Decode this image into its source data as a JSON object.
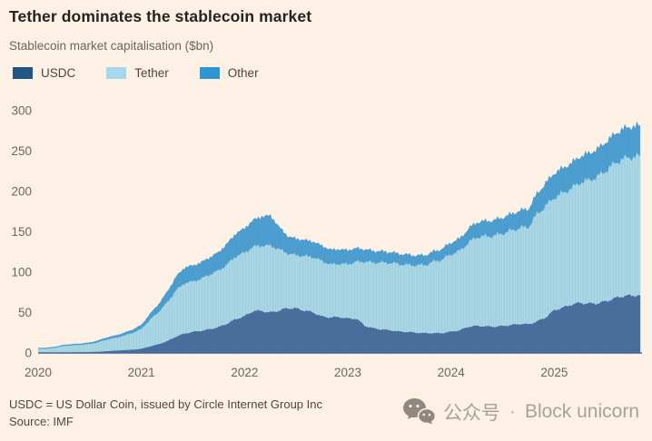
{
  "header": {
    "title": "Tether dominates the stablecoin market",
    "subtitle": "Stablecoin market capitalisation ($bn)"
  },
  "legend": [
    {
      "label": "USDC",
      "color": "#1F5685"
    },
    {
      "label": "Tether",
      "color": "#A5D8EA"
    },
    {
      "label": "Other",
      "color": "#2E96D1"
    }
  ],
  "chart_data": {
    "type": "area",
    "stacked": true,
    "title": "Tether dominates the stablecoin market",
    "subtitle": "Stablecoin market capitalisation ($bn)",
    "xlabel": "",
    "ylabel": "Stablecoin market capitalisation ($bn)",
    "grid": false,
    "legend_position": "top",
    "xlim": [
      2020.0,
      2025.85
    ],
    "ylim": [
      0,
      300
    ],
    "xticks": [
      2020,
      2021,
      2022,
      2023,
      2024,
      2025
    ],
    "yticks": [
      0,
      50,
      100,
      150,
      200,
      250,
      300
    ],
    "x": [
      2020.0,
      2020.083,
      2020.167,
      2020.25,
      2020.333,
      2020.417,
      2020.5,
      2020.583,
      2020.667,
      2020.75,
      2020.833,
      2020.917,
      2021.0,
      2021.083,
      2021.167,
      2021.25,
      2021.333,
      2021.417,
      2021.5,
      2021.583,
      2021.667,
      2021.75,
      2021.833,
      2021.917,
      2022.0,
      2022.083,
      2022.167,
      2022.25,
      2022.333,
      2022.417,
      2022.5,
      2022.583,
      2022.667,
      2022.75,
      2022.833,
      2022.917,
      2023.0,
      2023.083,
      2023.167,
      2023.25,
      2023.333,
      2023.417,
      2023.5,
      2023.583,
      2023.667,
      2023.75,
      2023.833,
      2023.917,
      2024.0,
      2024.083,
      2024.167,
      2024.25,
      2024.333,
      2024.417,
      2024.5,
      2024.583,
      2024.667,
      2024.75,
      2024.833,
      2024.917,
      2025.0,
      2025.083,
      2025.167,
      2025.25,
      2025.333,
      2025.417,
      2025.5,
      2025.583,
      2025.667,
      2025.75,
      2025.833
    ],
    "series": [
      {
        "name": "USDC",
        "color": "#4A6F9D",
        "legend_color": "#1F5685",
        "values": [
          0.5,
          0.5,
          0.6,
          0.7,
          0.7,
          0.9,
          1.1,
          1.4,
          2.2,
          2.8,
          3.5,
          4.0,
          5.2,
          8.0,
          10.8,
          14.5,
          20.0,
          24.0,
          26.0,
          27.5,
          29.5,
          32.0,
          36.5,
          42.0,
          45.5,
          52.0,
          52.0,
          50.0,
          52.5,
          55.5,
          55.0,
          52.5,
          50.0,
          45.0,
          44.0,
          44.5,
          42.5,
          42.5,
          33.5,
          30.5,
          29.0,
          28.0,
          26.5,
          26.0,
          25.0,
          24.5,
          24.5,
          24.5,
          26.5,
          28.0,
          32.5,
          33.5,
          33.0,
          32.5,
          33.5,
          34.5,
          36.0,
          35.5,
          39.0,
          44.0,
          53.0,
          56.0,
          60.0,
          62.0,
          61.0,
          61.5,
          64.0,
          67.5,
          70.5,
          71.0,
          71.5
        ]
      },
      {
        "name": "Tether",
        "color": "#A9D6E5",
        "legend_color": "#A5D8EA",
        "values": [
          4.7,
          4.7,
          6.0,
          8.0,
          8.8,
          9.2,
          10.0,
          12.0,
          14.5,
          15.9,
          18.0,
          21.0,
          24.5,
          33.0,
          40.0,
          48.0,
          57.0,
          62.5,
          62.5,
          64.5,
          68.0,
          70.0,
          73.5,
          78.0,
          78.5,
          79.5,
          81.0,
          83.0,
          76.0,
          68.0,
          66.0,
          67.5,
          68.5,
          69.0,
          65.5,
          66.0,
          67.5,
          70.5,
          79.5,
          81.5,
          83.0,
          83.5,
          83.5,
          83.0,
          83.5,
          84.5,
          88.5,
          91.5,
          96.0,
          98.0,
          104.0,
          110.0,
          111.5,
          112.5,
          114.5,
          117.0,
          119.0,
          120.5,
          133.0,
          138.0,
          139.5,
          142.0,
          144.0,
          149.0,
          153.0,
          156.5,
          162.0,
          167.0,
          170.0,
          171.5,
          172.5
        ]
      },
      {
        "name": "Other",
        "color": "#4C9FD0",
        "legend_color": "#2E96D1",
        "values": [
          1.2,
          1.2,
          1.3,
          1.5,
          1.6,
          1.7,
          1.9,
          2.3,
          2.8,
          3.1,
          3.6,
          4.2,
          5.3,
          7.5,
          10.0,
          13.5,
          17.0,
          19.5,
          20.0,
          20.5,
          21.5,
          23.0,
          26.0,
          28.5,
          30.5,
          33.5,
          36.0,
          37.5,
          28.0,
          21.5,
          20.5,
          20.0,
          19.5,
          19.0,
          18.5,
          18.0,
          17.5,
          17.0,
          15.5,
          14.5,
          14.0,
          13.5,
          13.0,
          12.8,
          12.5,
          12.3,
          12.8,
          13.3,
          14.5,
          15.5,
          17.5,
          18.5,
          19.0,
          19.5,
          20.0,
          20.5,
          21.5,
          22.5,
          25.5,
          28.5,
          30.5,
          31.0,
          31.5,
          32.5,
          33.5,
          34.5,
          35.5,
          36.5,
          37.5,
          38.0,
          38.0
        ]
      }
    ],
    "axis": {
      "tick_color": "#6B6560",
      "baseline_color": "#44689A"
    }
  },
  "footer": {
    "note": "USDC = US Dollar Coin, issued by Circle Internet Group Inc",
    "source": "Source: IMF"
  },
  "watermark": {
    "icon": "wechat-icon",
    "label": "公众号",
    "separator": "·",
    "brand": "Block unicorn"
  }
}
